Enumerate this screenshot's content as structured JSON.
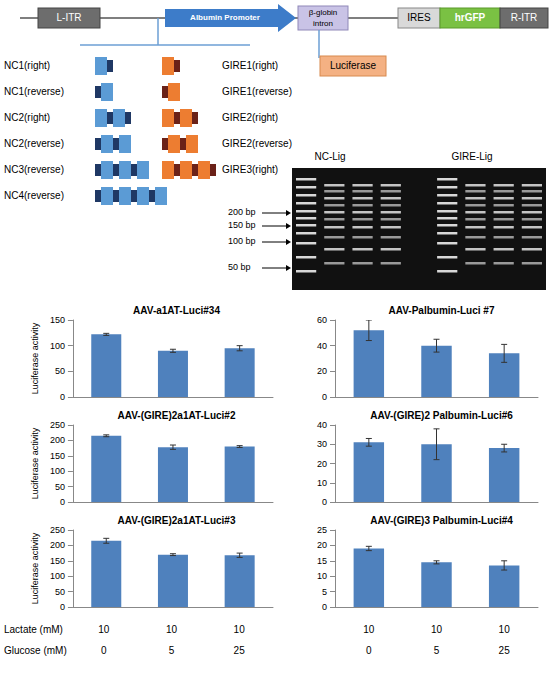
{
  "diagram": {
    "construct": [
      "L-ITR",
      "Albumin  Promoter",
      "β-globin intron",
      "IRES",
      "hrGFP",
      "R-ITR"
    ],
    "insert": "Luciferase",
    "nc_elements": [
      {
        "label": "NC1(right)",
        "units": 1
      },
      {
        "label": "NC1(reverse)",
        "units": 1
      },
      {
        "label": "NC2(right)",
        "units": 2
      },
      {
        "label": "NC2(reverse)",
        "units": 2
      },
      {
        "label": "NC3(reverse)",
        "units": 3
      },
      {
        "label": "NC4(reverse)",
        "units": 4
      }
    ],
    "gire_elements": [
      {
        "label": "GIRE1(right)",
        "units": 1
      },
      {
        "label": "GIRE1(reverse)",
        "units": 1
      },
      {
        "label": "GIRE2(right)",
        "units": 2
      },
      {
        "label": "GIRE2(reverse)",
        "units": 2
      },
      {
        "label": "GIRE3(right)",
        "units": 3
      }
    ],
    "gel": {
      "lanes": [
        "NC-Lig",
        "GIRE-Lig"
      ],
      "markers": [
        "200 bp",
        "150 bp",
        "100 bp",
        "50 bp"
      ]
    }
  },
  "conditions": {
    "rows": [
      {
        "label": "Lactate (mM)",
        "values": [
          10,
          10,
          10
        ]
      },
      {
        "label": "Glucose (mM)",
        "values": [
          0,
          5,
          25
        ]
      }
    ]
  },
  "chart_data": [
    {
      "type": "bar",
      "title": "AAV-a1AT-Luci#34",
      "y_label": "Luciferase activity",
      "categories": [
        null,
        null,
        null
      ],
      "values": [
        122,
        90,
        95
      ],
      "errors": [
        2,
        3,
        5
      ],
      "color": "#4f81bd",
      "ylim": [
        0,
        150
      ],
      "yticks": [
        0,
        50,
        100,
        150
      ],
      "grid": false,
      "tick_labels": "y"
    },
    {
      "type": "bar",
      "title": "AAV-Palbumin-Luci #7",
      "categories": [
        null,
        null,
        null
      ],
      "values": [
        52,
        40,
        34
      ],
      "errors": [
        8,
        5,
        7
      ],
      "color": "#4f81bd",
      "ylim": [
        0,
        60
      ],
      "yticks": [
        0,
        20,
        40,
        60
      ],
      "grid": false,
      "tick_labels": "y"
    },
    {
      "type": "bar",
      "title": "AAV-(GIRE)2a1AT-Luci#2",
      "y_label": "Luciferase activity",
      "categories": [
        null,
        null,
        null
      ],
      "values": [
        215,
        178,
        180
      ],
      "errors": [
        3,
        7,
        3
      ],
      "color": "#4f81bd",
      "ylim": [
        0,
        250
      ],
      "yticks": [
        0,
        50,
        100,
        150,
        200,
        250
      ],
      "grid": false,
      "tick_labels": "y"
    },
    {
      "type": "bar",
      "title": "AAV-(GIRE)2 Palbumin-Luci#6",
      "categories": [
        null,
        null,
        null
      ],
      "values": [
        31,
        30,
        28
      ],
      "errors": [
        2,
        8,
        2
      ],
      "color": "#4f81bd",
      "ylim": [
        0,
        40
      ],
      "yticks": [
        0,
        10,
        20,
        30,
        40
      ],
      "grid": false,
      "tick_labels": "y"
    },
    {
      "type": "bar",
      "title": "AAV-(GIRE)2a1AT-Luci#3",
      "y_label": "Luciferase activity",
      "categories": [
        null,
        null,
        null
      ],
      "values": [
        215,
        170,
        168
      ],
      "errors": [
        8,
        3,
        7
      ],
      "color": "#4f81bd",
      "ylim": [
        0,
        250
      ],
      "yticks": [
        0,
        50,
        100,
        150,
        200,
        250
      ],
      "grid": false,
      "tick_labels": "y"
    },
    {
      "type": "bar",
      "title": "AAV-(GIRE)3 Palbumin-Luci#4",
      "categories": [
        null,
        null,
        null
      ],
      "values": [
        19,
        14.5,
        13.5
      ],
      "errors": [
        0.7,
        0.5,
        1.5
      ],
      "color": "#4f81bd",
      "ylim": [
        0,
        25
      ],
      "yticks": [
        0,
        5,
        10,
        15,
        20,
        25
      ],
      "grid": false,
      "tick_labels": "y"
    }
  ]
}
